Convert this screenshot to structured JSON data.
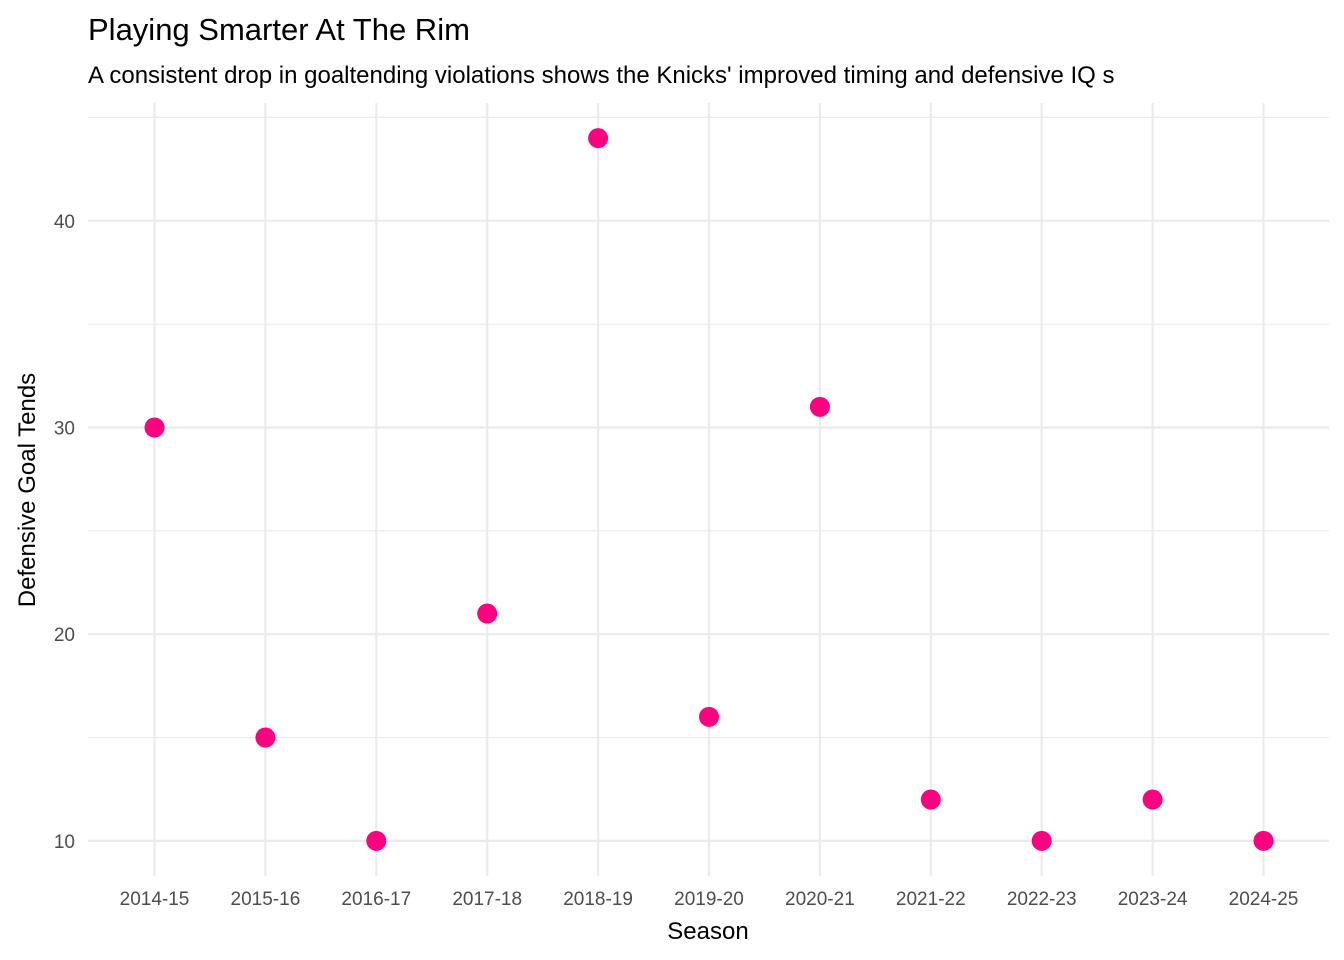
{
  "chart_data": {
    "type": "scatter",
    "title": "Playing Smarter At The Rim",
    "subtitle": "A consistent drop in goaltending violations shows the Knicks' improved timing and defensive IQ s",
    "xlabel": "Season",
    "ylabel": "Defensive Goal Tends",
    "categories": [
      "2014-15",
      "2015-16",
      "2016-17",
      "2017-18",
      "2018-19",
      "2019-20",
      "2020-21",
      "2021-22",
      "2022-23",
      "2023-24",
      "2024-25"
    ],
    "values": [
      30,
      15,
      10,
      21,
      44,
      16,
      31,
      12,
      10,
      12,
      10
    ],
    "ylim": [
      8.3,
      45.7
    ],
    "yticks": [
      10,
      20,
      30,
      40
    ],
    "grid": true,
    "legend": "none",
    "point_color": "#FF0080"
  }
}
